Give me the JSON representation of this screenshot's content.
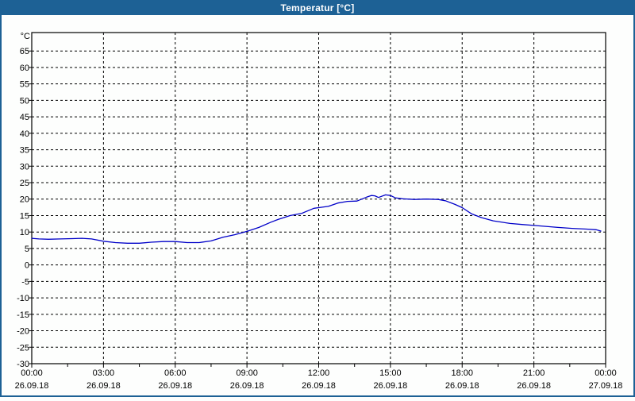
{
  "window": {
    "title": "Temperatur [°C]",
    "titlebar_color": "#1d6195",
    "border_color": "#1d6195",
    "background_color": "#fdfefd"
  },
  "chart_data": {
    "type": "line",
    "title": "Temperatur [°C]",
    "unit_label": "°C",
    "ylim": [
      -30,
      70.6
    ],
    "yticks": [
      65,
      60,
      55,
      50,
      45,
      40,
      35,
      30,
      25,
      20,
      15,
      10,
      5,
      0,
      -5,
      -10,
      -15,
      -20,
      -25,
      -30
    ],
    "xlim_hours": [
      0,
      24
    ],
    "xticks": [
      {
        "hour": 0,
        "time": "00:00",
        "date": "26.09.18"
      },
      {
        "hour": 3,
        "time": "03:00",
        "date": "26.09.18"
      },
      {
        "hour": 6,
        "time": "06:00",
        "date": "26.09.18"
      },
      {
        "hour": 9,
        "time": "09:00",
        "date": "26.09.18"
      },
      {
        "hour": 12,
        "time": "12:00",
        "date": "26.09.18"
      },
      {
        "hour": 15,
        "time": "15:00",
        "date": "26.09.18"
      },
      {
        "hour": 18,
        "time": "18:00",
        "date": "26.09.18"
      },
      {
        "hour": 21,
        "time": "21:00",
        "date": "26.09.18"
      },
      {
        "hour": 24,
        "time": "00:00",
        "date": "27.09.18"
      }
    ],
    "minor_xtick_step_hours": 1.5,
    "grid": {
      "on": true,
      "style": "dashed",
      "color": "#000000"
    },
    "axis_color": "#000000",
    "series": [
      {
        "name": "Temperatur",
        "color": "#0000c8",
        "points": [
          [
            0.0,
            8.1
          ],
          [
            0.3,
            7.9
          ],
          [
            0.7,
            7.8
          ],
          [
            1.2,
            7.9
          ],
          [
            1.7,
            8.0
          ],
          [
            2.1,
            8.1
          ],
          [
            2.5,
            7.9
          ],
          [
            3.0,
            7.2
          ],
          [
            3.5,
            6.8
          ],
          [
            4.0,
            6.6
          ],
          [
            4.5,
            6.6
          ],
          [
            5.0,
            6.9
          ],
          [
            5.5,
            7.1
          ],
          [
            6.0,
            7.1
          ],
          [
            6.5,
            6.8
          ],
          [
            7.0,
            6.8
          ],
          [
            7.5,
            7.3
          ],
          [
            8.0,
            8.4
          ],
          [
            8.5,
            9.2
          ],
          [
            9.0,
            10.2
          ],
          [
            9.5,
            11.4
          ],
          [
            10.0,
            13.0
          ],
          [
            10.3,
            13.8
          ],
          [
            10.8,
            15.0
          ],
          [
            11.3,
            15.7
          ],
          [
            11.8,
            17.2
          ],
          [
            12.0,
            17.4
          ],
          [
            12.4,
            17.8
          ],
          [
            12.8,
            18.8
          ],
          [
            13.2,
            19.3
          ],
          [
            13.6,
            19.4
          ],
          [
            14.0,
            20.6
          ],
          [
            14.2,
            21.1
          ],
          [
            14.35,
            21.0
          ],
          [
            14.5,
            20.5
          ],
          [
            14.8,
            21.3
          ],
          [
            15.0,
            21.1
          ],
          [
            15.2,
            20.4
          ],
          [
            15.5,
            20.1
          ],
          [
            16.0,
            19.9
          ],
          [
            16.5,
            20.0
          ],
          [
            17.0,
            19.9
          ],
          [
            17.3,
            19.5
          ],
          [
            17.7,
            18.4
          ],
          [
            18.0,
            17.4
          ],
          [
            18.4,
            15.5
          ],
          [
            18.8,
            14.4
          ],
          [
            19.3,
            13.4
          ],
          [
            20.0,
            12.6
          ],
          [
            20.5,
            12.3
          ],
          [
            21.0,
            12.0
          ],
          [
            21.5,
            11.7
          ],
          [
            22.0,
            11.4
          ],
          [
            22.6,
            11.1
          ],
          [
            23.2,
            10.9
          ],
          [
            23.6,
            10.7
          ],
          [
            23.8,
            10.3
          ]
        ]
      }
    ]
  }
}
